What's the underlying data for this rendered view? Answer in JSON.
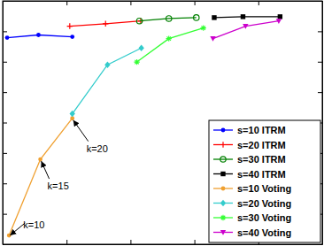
{
  "chart_data": {
    "type": "line",
    "xlim": [
      0,
      5
    ],
    "xticks": [
      0,
      1,
      2,
      3,
      4,
      5
    ],
    "ylim": [
      0,
      8
    ],
    "yticks": [
      0,
      1,
      2,
      3,
      4,
      5,
      6,
      7,
      8
    ],
    "tick_labels": false,
    "grid": false,
    "legend": "lower right",
    "series": [
      {
        "name": "s=10 ITRM",
        "color": "#0000ff",
        "marker": "point",
        "x": [
          0.07,
          0.56,
          1.09
        ],
        "values": [
          6.79,
          6.88,
          6.82
        ]
      },
      {
        "name": "s=20 ITRM",
        "color": "#ff0000",
        "marker": "plus",
        "x": [
          1.05,
          1.61,
          2.16
        ],
        "values": [
          7.17,
          7.25,
          7.34
        ]
      },
      {
        "name": "s=30 ITRM",
        "color": "#008000",
        "marker": "circle",
        "x": [
          2.14,
          2.6,
          3.03
        ],
        "values": [
          7.34,
          7.42,
          7.45
        ]
      },
      {
        "name": "s=40 ITRM",
        "color": "#000000",
        "marker": "square",
        "x": [
          3.31,
          3.76,
          4.34
        ],
        "values": [
          7.45,
          7.48,
          7.48
        ]
      },
      {
        "name": "s=10 Voting",
        "color": "#f0a030",
        "marker": "point",
        "x": [
          0.1,
          0.59,
          1.09
        ],
        "values": [
          0.29,
          2.79,
          4.14
        ]
      },
      {
        "name": "s=20 Voting",
        "color": "#33cccc",
        "marker": "diamond",
        "x": [
          1.09,
          1.64,
          2.17
        ],
        "values": [
          4.29,
          5.9,
          6.45
        ]
      },
      {
        "name": "s=30 Voting",
        "color": "#33ff33",
        "marker": "star",
        "x": [
          2.1,
          2.6,
          3.14
        ],
        "values": [
          5.99,
          6.76,
          7.11
        ]
      },
      {
        "name": "s=40 Voting",
        "color": "#cc00cc",
        "marker": "triangle-down",
        "x": [
          3.29,
          3.8,
          4.32
        ],
        "values": [
          6.76,
          7.17,
          7.34
        ]
      }
    ],
    "annotations": [
      {
        "text": "k=10",
        "x": 0.1,
        "y": 0.29
      },
      {
        "text": "k=15",
        "x": 0.59,
        "y": 2.79
      },
      {
        "text": "k=20",
        "x": 1.09,
        "y": 4.14
      }
    ]
  }
}
